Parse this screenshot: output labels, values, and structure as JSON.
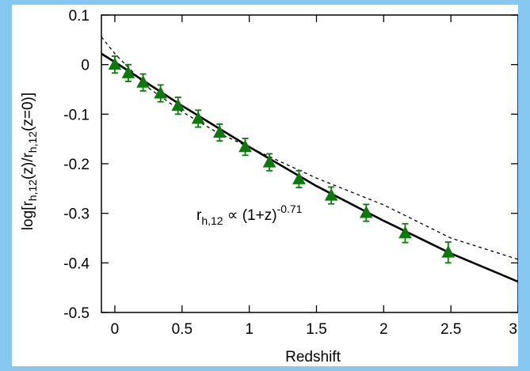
{
  "chart_data": {
    "type": "scatter",
    "xlabel": "Redshift",
    "ylabel": {
      "prefix": "log[r",
      "sub1": "h,12",
      "mid": "(z)/r",
      "sub2": "h,12",
      "suffix": "(z=0)]"
    },
    "annotation": {
      "base": "r",
      "sub": "h,12",
      "rel": " ∝ (1+z)",
      "sup": "-0.71"
    },
    "xlim": [
      -0.1,
      3.0
    ],
    "ylim": [
      -0.5,
      0.1
    ],
    "xticks": [
      "0",
      "0.5",
      "1",
      "1.5",
      "2",
      "2.5",
      "3"
    ],
    "xtick_values": [
      0,
      0.5,
      1,
      1.5,
      2,
      2.5,
      3
    ],
    "yticks": [
      "0.1",
      "0",
      "-0.1",
      "-0.2",
      "-0.3",
      "-0.4",
      "-0.5"
    ],
    "ytick_values": [
      0.1,
      0,
      -0.1,
      -0.2,
      -0.3,
      -0.4,
      -0.5
    ],
    "grid": false,
    "series": [
      {
        "kind": "points-with-errorbars",
        "marker": "triangle",
        "color": "#0a7a0a",
        "x": [
          0.0,
          0.1,
          0.21,
          0.34,
          0.47,
          0.62,
          0.78,
          0.97,
          1.15,
          1.37,
          1.61,
          1.87,
          2.16,
          2.48
        ],
        "y": [
          0.0,
          -0.017,
          -0.036,
          -0.058,
          -0.083,
          -0.109,
          -0.137,
          -0.166,
          -0.197,
          -0.231,
          -0.264,
          -0.299,
          -0.34,
          -0.379
        ],
        "yerr": [
          0.017,
          0.017,
          0.017,
          0.017,
          0.017,
          0.017,
          0.017,
          0.017,
          0.017,
          0.017,
          0.017,
          0.017,
          0.019,
          0.021
        ]
      },
      {
        "kind": "curve",
        "style": "solid",
        "color": "#000000",
        "x": [
          -0.1,
          0,
          0.5,
          1,
          1.5,
          2,
          2.5,
          3
        ],
        "y": [
          0.022,
          0.005,
          -0.083,
          -0.166,
          -0.245,
          -0.315,
          -0.381,
          -0.438
        ]
      },
      {
        "kind": "curve",
        "style": "dashed",
        "color": "#000000",
        "x": [
          -0.1,
          0,
          0.25,
          0.5,
          0.75,
          1,
          1.5,
          2,
          2.5,
          3
        ],
        "y": [
          0.056,
          0.022,
          -0.047,
          -0.095,
          -0.135,
          -0.167,
          -0.229,
          -0.283,
          -0.35,
          -0.393
        ]
      }
    ]
  }
}
